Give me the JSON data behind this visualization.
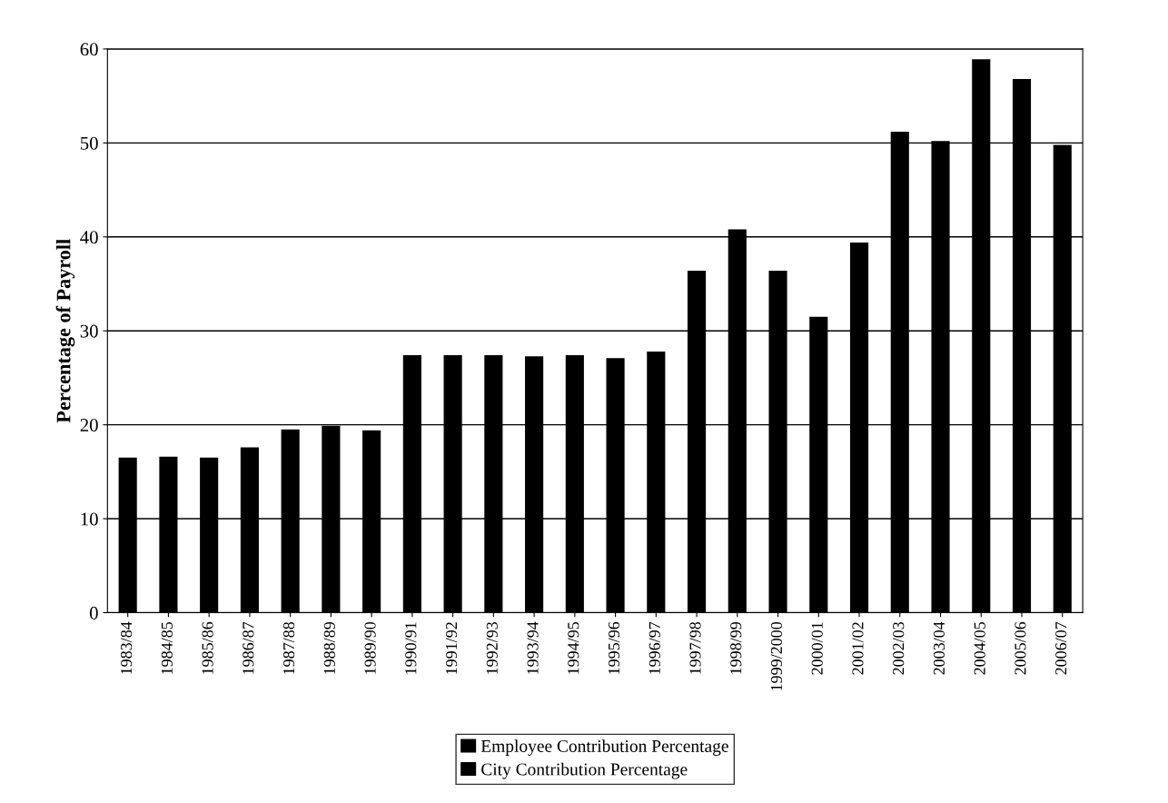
{
  "chart_data": {
    "type": "bar",
    "ylabel": "Percentage of Payroll",
    "categories": [
      "1983/84",
      "1984/85",
      "1985/86",
      "1986/87",
      "1987/88",
      "1988/89",
      "1989/90",
      "1990/91",
      "1991/92",
      "1992/93",
      "1993/94",
      "1994/95",
      "1995/96",
      "1996/97",
      "1997/98",
      "1998/99",
      "1999/2000",
      "2000/01",
      "2001/02",
      "2002/03",
      "2003/04",
      "2004/05",
      "2005/06",
      "2006/07"
    ],
    "values": [
      16.5,
      16.6,
      16.5,
      17.6,
      19.5,
      19.9,
      19.4,
      27.4,
      27.4,
      27.4,
      27.3,
      27.4,
      27.1,
      27.8,
      36.4,
      40.8,
      36.4,
      31.5,
      39.4,
      51.2,
      50.2,
      58.9,
      56.8,
      49.8
    ],
    "color": "#000000",
    "ylim": [
      0,
      60
    ],
    "yticks": [
      0,
      10,
      20,
      30,
      40,
      50,
      60
    ],
    "grid": "y",
    "annotations": [
      "Employee Contribution Percentage",
      "City Contribution Percentage"
    ]
  }
}
